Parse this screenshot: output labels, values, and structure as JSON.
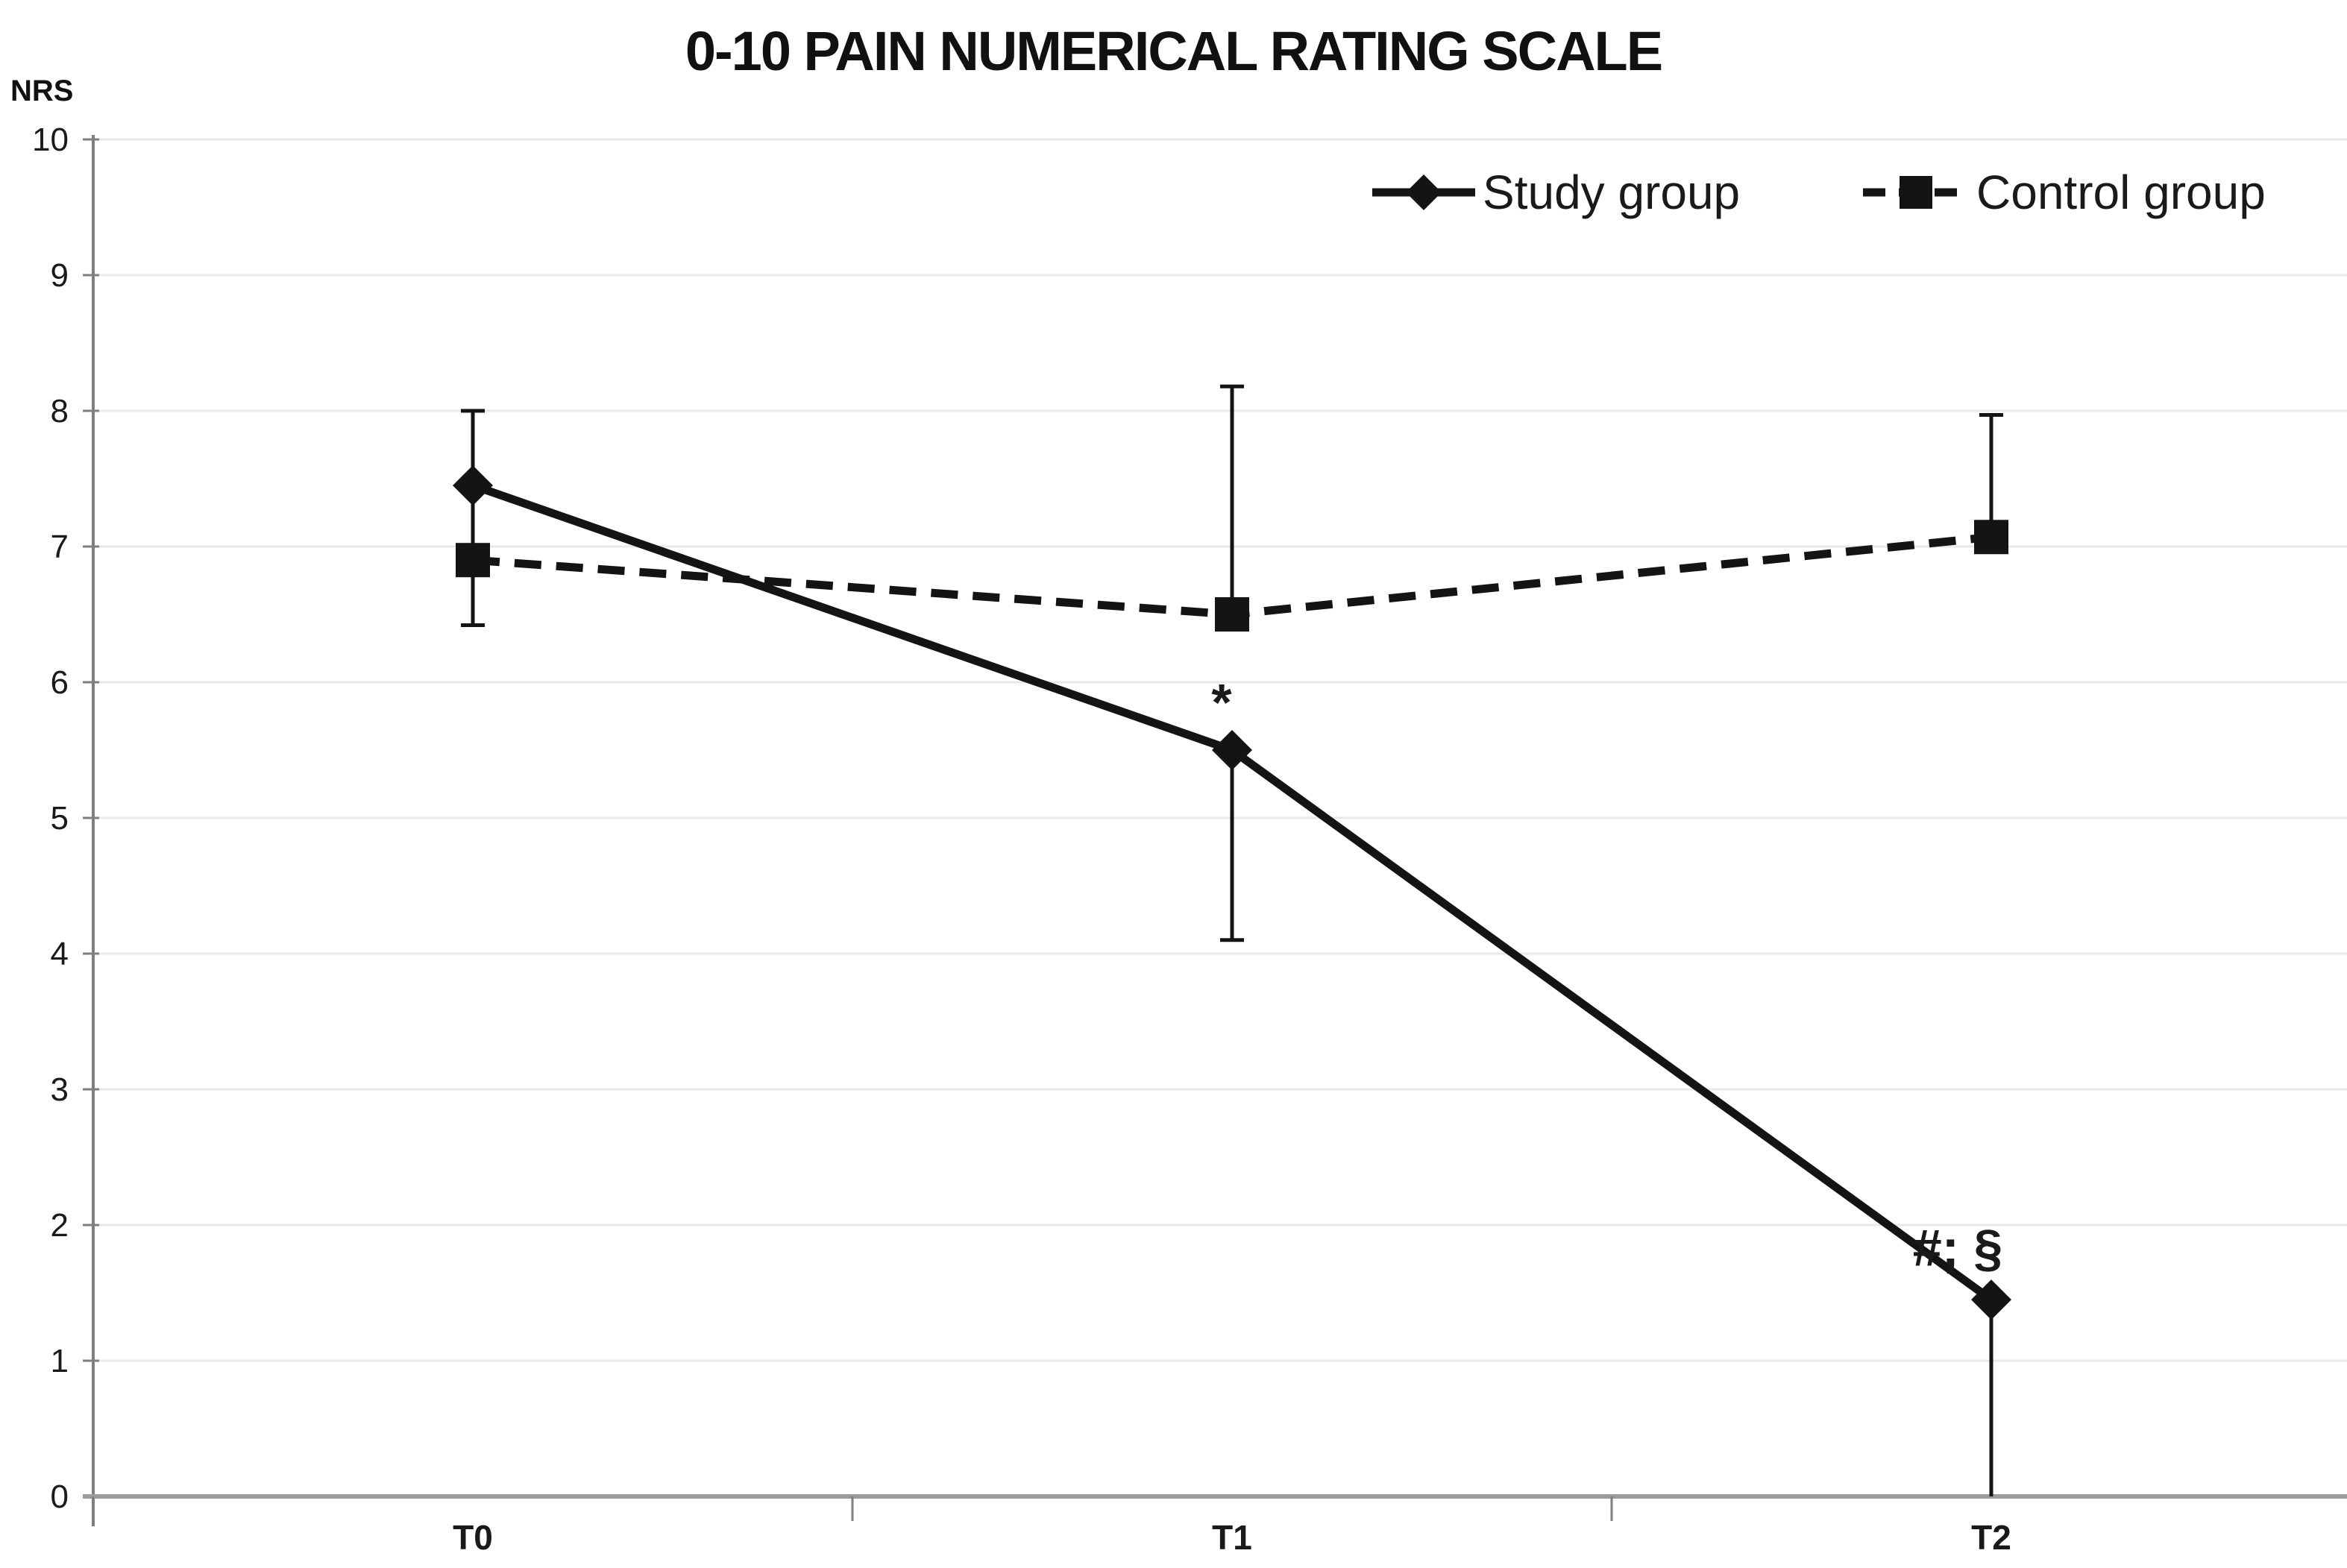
{
  "chart_data": {
    "type": "line",
    "title": "0-10 PAIN NUMERICAL RATING SCALE",
    "ylabel": "NRS",
    "xlabel": "",
    "categories": [
      "T0",
      "T1",
      "T2"
    ],
    "ylim": [
      0,
      10
    ],
    "yticks": [
      0,
      1,
      2,
      3,
      4,
      5,
      6,
      7,
      8,
      9,
      10
    ],
    "grid": "horizontal-light",
    "legend_position": "top-right-inside",
    "series": [
      {
        "name": "Study group",
        "marker": "diamond",
        "line_style": "solid",
        "values": [
          7.45,
          5.5,
          1.45
        ],
        "error_bars": [
          {
            "high": 8.0,
            "low": 6.42
          },
          {
            "high": null,
            "low": 4.1
          },
          {
            "high": null,
            "low": 0,
            "low_cap": false
          }
        ]
      },
      {
        "name": "Control group",
        "marker": "square",
        "line_style": "dashed",
        "values": [
          6.9,
          6.5,
          7.07
        ],
        "error_bars": [
          {
            "high": null,
            "low": 6.42
          },
          {
            "high": 8.18,
            "low": null
          },
          {
            "high": 7.97,
            "low": null
          }
        ]
      }
    ],
    "annotations": [
      {
        "text": "*",
        "category": "T1",
        "value": 5.72,
        "dx": -14
      },
      {
        "text": "#; §",
        "category": "T2",
        "value": 1.7,
        "dx": -45
      }
    ],
    "colors": {
      "series": "#141414",
      "grid": "#e8e8e8",
      "axis": "#7f7f7f",
      "baseline": "#9c9c9c",
      "text": "#1a1a1a"
    }
  }
}
